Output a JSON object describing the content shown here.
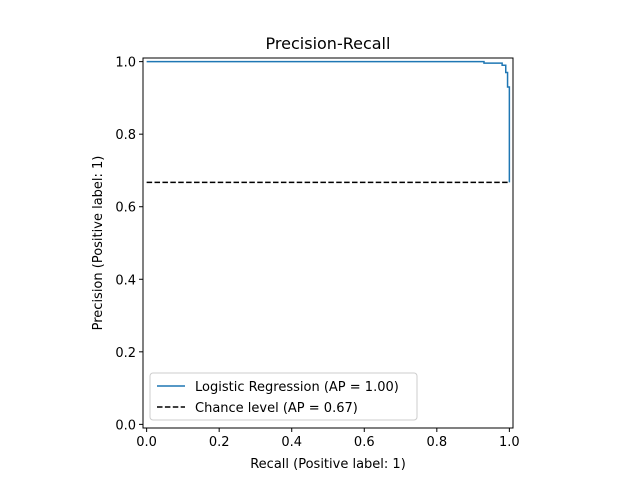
{
  "chart_data": {
    "type": "line",
    "title": "Precision-Recall",
    "xlabel": "Recall (Positive label: 1)",
    "ylabel": "Precision (Positive label: 1)",
    "xlim": [
      -0.01,
      1.01
    ],
    "ylim": [
      -0.01,
      1.01
    ],
    "x_ticks": [
      0.0,
      0.2,
      0.4,
      0.6,
      0.8,
      1.0
    ],
    "x_tick_labels": [
      "0.0",
      "0.2",
      "0.4",
      "0.6",
      "0.8",
      "1.0"
    ],
    "y_ticks": [
      0.0,
      0.2,
      0.4,
      0.6,
      0.8,
      1.0
    ],
    "y_tick_labels": [
      "0.0",
      "0.2",
      "0.4",
      "0.6",
      "0.8",
      "1.0"
    ],
    "grid": false,
    "legend_position": "lower-left",
    "series": [
      {
        "name": "Logistic Regression (AP = 1.00)",
        "color": "#1f77b4",
        "style": "step",
        "x": [
          0.0,
          0.93,
          0.93,
          0.98,
          0.98,
          0.99,
          0.99,
          0.995,
          0.995,
          1.0,
          1.0
        ],
        "y": [
          1.0,
          1.0,
          0.996,
          0.996,
          0.99,
          0.99,
          0.97,
          0.97,
          0.93,
          0.93,
          0.667
        ]
      },
      {
        "name": "Chance level (AP = 0.67)",
        "color": "#000000",
        "style": "dashed",
        "x": [
          0.0,
          1.0
        ],
        "y": [
          0.667,
          0.667
        ]
      }
    ]
  }
}
